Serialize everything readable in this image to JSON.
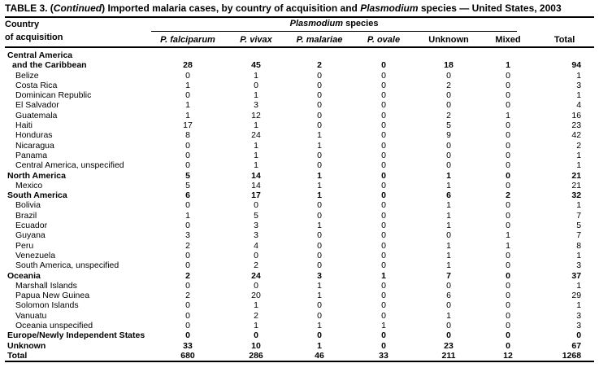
{
  "title": {
    "parts": [
      {
        "text": "TABLE 3. (",
        "italic": false
      },
      {
        "text": "Continued",
        "italic": true
      },
      {
        "text": ") Imported malaria cases, by country of acquisition and ",
        "italic": false
      },
      {
        "text": "Plasmodium",
        "italic": true
      },
      {
        "text": " species — United States, 2003",
        "italic": false
      }
    ]
  },
  "table": {
    "row_header": {
      "line1": "Country",
      "line2": "of acquisition"
    },
    "group_header": {
      "parts": [
        {
          "text": "Plasmodium",
          "italic": true
        },
        {
          "text": " species",
          "italic": false
        }
      ]
    },
    "columns": [
      {
        "label": "P. falciparum",
        "italic": true
      },
      {
        "label": "P. vivax",
        "italic": true
      },
      {
        "label": "P. malariae",
        "italic": true
      },
      {
        "label": "P. ovale",
        "italic": true
      },
      {
        "label": "Unknown",
        "italic": false
      },
      {
        "label": "Mixed",
        "italic": false
      }
    ],
    "total_column_label": "Total",
    "rows": [
      {
        "label": "Central America",
        "indent": 0,
        "bold": true,
        "values": null
      },
      {
        "label": "and the Caribbean",
        "indent": 1,
        "bold": true,
        "values": [
          28,
          45,
          2,
          0,
          18,
          1,
          94
        ]
      },
      {
        "label": "Belize",
        "indent": 2,
        "bold": false,
        "values": [
          0,
          1,
          0,
          0,
          0,
          0,
          1
        ]
      },
      {
        "label": "Costa Rica",
        "indent": 2,
        "bold": false,
        "values": [
          1,
          0,
          0,
          0,
          2,
          0,
          3
        ]
      },
      {
        "label": "Dominican Republic",
        "indent": 2,
        "bold": false,
        "values": [
          0,
          1,
          0,
          0,
          0,
          0,
          1
        ]
      },
      {
        "label": "El Salvador",
        "indent": 2,
        "bold": false,
        "values": [
          1,
          3,
          0,
          0,
          0,
          0,
          4
        ]
      },
      {
        "label": "Guatemala",
        "indent": 2,
        "bold": false,
        "values": [
          1,
          12,
          0,
          0,
          2,
          1,
          16
        ]
      },
      {
        "label": "Haiti",
        "indent": 2,
        "bold": false,
        "values": [
          17,
          1,
          0,
          0,
          5,
          0,
          23
        ]
      },
      {
        "label": "Honduras",
        "indent": 2,
        "bold": false,
        "values": [
          8,
          24,
          1,
          0,
          9,
          0,
          42
        ]
      },
      {
        "label": "Nicaragua",
        "indent": 2,
        "bold": false,
        "values": [
          0,
          1,
          1,
          0,
          0,
          0,
          2
        ]
      },
      {
        "label": "Panama",
        "indent": 2,
        "bold": false,
        "values": [
          0,
          1,
          0,
          0,
          0,
          0,
          1
        ]
      },
      {
        "label": "Central America, unspecified",
        "indent": 2,
        "bold": false,
        "values": [
          0,
          1,
          0,
          0,
          0,
          0,
          1
        ]
      },
      {
        "label": "North America",
        "indent": 0,
        "bold": true,
        "values": [
          5,
          14,
          1,
          0,
          1,
          0,
          21
        ]
      },
      {
        "label": "Mexico",
        "indent": 2,
        "bold": false,
        "values": [
          5,
          14,
          1,
          0,
          1,
          0,
          21
        ]
      },
      {
        "label": "South America",
        "indent": 0,
        "bold": true,
        "values": [
          6,
          17,
          1,
          0,
          6,
          2,
          32
        ]
      },
      {
        "label": "Bolivia",
        "indent": 2,
        "bold": false,
        "values": [
          0,
          0,
          0,
          0,
          1,
          0,
          1
        ]
      },
      {
        "label": "Brazil",
        "indent": 2,
        "bold": false,
        "values": [
          1,
          5,
          0,
          0,
          1,
          0,
          7
        ]
      },
      {
        "label": "Ecuador",
        "indent": 2,
        "bold": false,
        "values": [
          0,
          3,
          1,
          0,
          1,
          0,
          5
        ]
      },
      {
        "label": "Guyana",
        "indent": 2,
        "bold": false,
        "values": [
          3,
          3,
          0,
          0,
          0,
          1,
          7
        ]
      },
      {
        "label": "Peru",
        "indent": 2,
        "bold": false,
        "values": [
          2,
          4,
          0,
          0,
          1,
          1,
          8
        ]
      },
      {
        "label": "Venezuela",
        "indent": 2,
        "bold": false,
        "values": [
          0,
          0,
          0,
          0,
          1,
          0,
          1
        ]
      },
      {
        "label": "South America, unspecified",
        "indent": 2,
        "bold": false,
        "values": [
          0,
          2,
          0,
          0,
          1,
          0,
          3
        ]
      },
      {
        "label": "Oceania",
        "indent": 0,
        "bold": true,
        "values": [
          2,
          24,
          3,
          1,
          7,
          0,
          37
        ]
      },
      {
        "label": "Marshall Islands",
        "indent": 2,
        "bold": false,
        "values": [
          0,
          0,
          1,
          0,
          0,
          0,
          1
        ]
      },
      {
        "label": "Papua New Guinea",
        "indent": 2,
        "bold": false,
        "values": [
          2,
          20,
          1,
          0,
          6,
          0,
          29
        ]
      },
      {
        "label": "Solomon Islands",
        "indent": 2,
        "bold": false,
        "values": [
          0,
          1,
          0,
          0,
          0,
          0,
          1
        ]
      },
      {
        "label": "Vanuatu",
        "indent": 2,
        "bold": false,
        "values": [
          0,
          2,
          0,
          0,
          1,
          0,
          3
        ]
      },
      {
        "label": "Oceania unspecified",
        "indent": 2,
        "bold": false,
        "values": [
          0,
          1,
          1,
          1,
          0,
          0,
          3
        ]
      },
      {
        "label": "Europe/Newly Independent States",
        "indent": 0,
        "bold": true,
        "values": [
          0,
          0,
          0,
          0,
          0,
          0,
          0
        ]
      },
      {
        "label": "Unknown",
        "indent": 0,
        "bold": true,
        "values": [
          33,
          10,
          1,
          0,
          23,
          0,
          67
        ]
      },
      {
        "label": "Total",
        "indent": 0,
        "bold": true,
        "values": [
          680,
          286,
          46,
          33,
          211,
          12,
          1268
        ]
      }
    ]
  }
}
